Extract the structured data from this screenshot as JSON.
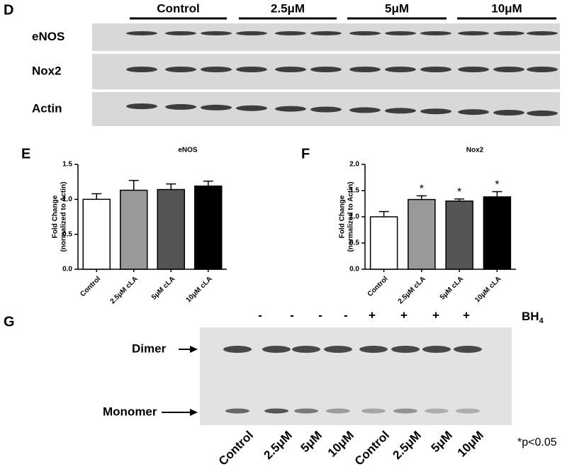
{
  "panel_labels": {
    "d": "D",
    "e": "E",
    "f": "F",
    "g": "G"
  },
  "blot_d": {
    "groups": [
      "Control",
      "2.5μM",
      "5μM",
      "10μM"
    ],
    "rows": [
      "eNOS",
      "Nox2",
      "Actin"
    ]
  },
  "chart_data": [
    {
      "type": "bar",
      "title": "eNOS",
      "ylabel": [
        "Fold Change",
        "(normalized to Actin)"
      ],
      "categories": [
        "Control",
        "2.5μM cLA",
        "5μM cLA",
        "10μM cLA"
      ],
      "values": [
        1.0,
        1.13,
        1.14,
        1.19
      ],
      "errors": [
        0.08,
        0.14,
        0.08,
        0.07
      ],
      "colors": [
        "#ffffff",
        "#999999",
        "#555555",
        "#000000"
      ],
      "ylim": [
        0,
        1.5
      ],
      "yticks": [
        {
          "value": 0,
          "label": "0.0"
        },
        0.5,
        {
          "value": 1,
          "label": "1.0"
        },
        1.5
      ]
    },
    {
      "type": "bar",
      "title": "Nox2",
      "ylabel": [
        "Fold Change",
        "(normalized to Actin)"
      ],
      "categories": [
        "Control",
        "2.5μM cLA",
        "5μM cLA",
        "10μM cLA"
      ],
      "values": [
        1.0,
        1.33,
        1.3,
        1.38
      ],
      "errors": [
        0.1,
        0.07,
        0.04,
        0.1
      ],
      "significance": [
        null,
        "*",
        "*",
        "*"
      ],
      "colors": [
        "#ffffff",
        "#999999",
        "#555555",
        "#000000"
      ],
      "ylim": [
        0,
        2
      ],
      "yticks": [
        {
          "value": 0,
          "label": "0.0"
        },
        0.5,
        {
          "value": 1,
          "label": "1.0"
        },
        1.5,
        {
          "value": 2,
          "label": "2.0"
        }
      ]
    }
  ],
  "blot_g": {
    "treatment": [
      "-",
      "-",
      "-",
      "-",
      "+",
      "+",
      "+",
      "+"
    ],
    "reagent": "BH",
    "reagent_sub": "4",
    "bands": [
      "Dimer",
      "Monomer"
    ],
    "lanes": [
      "Control",
      "2.5μM",
      "5μM",
      "10μM",
      "Control",
      "2.5μM",
      "5μM",
      "10μM"
    ],
    "note": "*p<0.05"
  }
}
